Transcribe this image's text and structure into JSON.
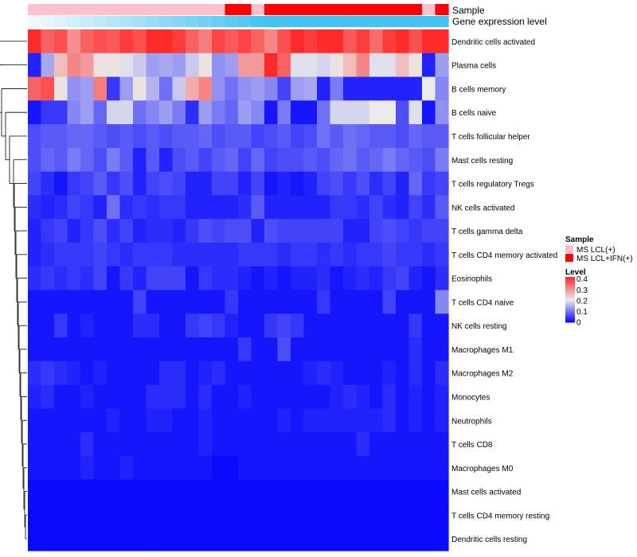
{
  "colors": {
    "low": "#0000ff",
    "mid": "#ebebeb",
    "high": "#ff2b2b",
    "sample_ms_lcl": "#ffc0cb",
    "sample_ms_lcl_ifn": "#ff0000",
    "gene_bar_start": "#f0f8ff",
    "gene_bar_end": "#44c2f2",
    "dendro": "#000000"
  },
  "chart_data": {
    "type": "heatmap",
    "annotation_labels": {
      "sample": "Sample",
      "gene_expression": "Gene expression level"
    },
    "legend": {
      "sample_title": "Sample",
      "sample_items": [
        {
          "label": "MS LCL(+)",
          "color": "#ffc0cb"
        },
        {
          "label": "MS LCL+IFN(+)",
          "color": "#ff0000"
        }
      ],
      "level_title": "Level",
      "level_ticks": [
        "0.4",
        "0.3",
        "0.2",
        "0.1",
        "0"
      ],
      "level_min": 0,
      "level_max": 0.42,
      "placement": "right"
    },
    "sample_groups": [
      0,
      0,
      0,
      0,
      0,
      0,
      0,
      0,
      0,
      0,
      0,
      0,
      0,
      0,
      0,
      1,
      1,
      0,
      1,
      1,
      1,
      1,
      1,
      1,
      1,
      1,
      1,
      1,
      1,
      1,
      0,
      1
    ],
    "rows": [
      "Dendritic cells activated",
      "Plasma cells",
      "B cells memory",
      "B cells naive",
      "T cells follicular helper",
      "Mast cells resting",
      "T cells regulatory  Tregs",
      "NK cells activated",
      "T cells gamma delta",
      "T cells CD4 memory activated",
      "Eosinophils",
      "T cells CD4 naive",
      "NK cells resting",
      "Macrophages M1",
      "Macrophages M2",
      "Monocytes",
      "Neutrophils",
      "T cells CD8",
      "Macrophages M0",
      "Mast cells activated",
      "T cells CD4 memory resting",
      "Dendritic cells resting"
    ],
    "values": [
      [
        0.42,
        0.36,
        0.38,
        0.31,
        0.36,
        0.38,
        0.37,
        0.4,
        0.38,
        0.42,
        0.42,
        0.4,
        0.36,
        0.33,
        0.39,
        0.37,
        0.39,
        0.36,
        0.32,
        0.38,
        0.42,
        0.4,
        0.42,
        0.42,
        0.37,
        0.4,
        0.35,
        0.4,
        0.42,
        0.38,
        0.42,
        0.42
      ],
      [
        0.03,
        0.15,
        0.26,
        0.32,
        0.3,
        0.22,
        0.22,
        0.2,
        0.18,
        0.14,
        0.15,
        0.14,
        0.18,
        0.22,
        0.13,
        0.14,
        0.3,
        0.3,
        0.42,
        0.36,
        0.2,
        0.2,
        0.19,
        0.22,
        0.26,
        0.32,
        0.2,
        0.2,
        0.26,
        0.22,
        0.03,
        0.14
      ],
      [
        0.36,
        0.38,
        0.22,
        0.13,
        0.14,
        0.33,
        0.05,
        0.14,
        0.22,
        0.16,
        0.1,
        0.18,
        0.28,
        0.32,
        0.13,
        0.1,
        0.13,
        0.14,
        0.12,
        0.06,
        0.14,
        0.15,
        0.03,
        0.11,
        0.03,
        0.03,
        0.03,
        0.03,
        0.03,
        0.03,
        0.21,
        0.12
      ],
      [
        0.02,
        0.05,
        0.05,
        0.12,
        0.14,
        0.09,
        0.19,
        0.19,
        0.1,
        0.12,
        0.14,
        0.11,
        0.04,
        0.14,
        0.11,
        0.09,
        0.14,
        0.12,
        0.02,
        0.11,
        0.02,
        0.02,
        0.1,
        0.19,
        0.19,
        0.19,
        0.21,
        0.21,
        0.07,
        0.2,
        0.02,
        0.13
      ],
      [
        0.07,
        0.08,
        0.08,
        0.09,
        0.09,
        0.08,
        0.07,
        0.08,
        0.07,
        0.08,
        0.07,
        0.08,
        0.08,
        0.09,
        0.07,
        0.08,
        0.08,
        0.06,
        0.07,
        0.08,
        0.06,
        0.07,
        0.1,
        0.08,
        0.1,
        0.09,
        0.08,
        0.08,
        0.07,
        0.09,
        0.08,
        0.08
      ],
      [
        0.07,
        0.09,
        0.08,
        0.11,
        0.09,
        0.07,
        0.11,
        0.08,
        0.03,
        0.08,
        0.03,
        0.07,
        0.08,
        0.06,
        0.08,
        0.09,
        0.06,
        0.09,
        0.06,
        0.07,
        0.07,
        0.08,
        0.07,
        0.09,
        0.1,
        0.08,
        0.09,
        0.11,
        0.09,
        0.08,
        0.07,
        0.11
      ],
      [
        0.06,
        0.04,
        0.02,
        0.05,
        0.06,
        0.08,
        0.05,
        0.07,
        0.03,
        0.06,
        0.07,
        0.06,
        0.03,
        0.03,
        0.06,
        0.06,
        0.03,
        0.06,
        0.02,
        0.03,
        0.02,
        0.03,
        0.06,
        0.07,
        0.05,
        0.07,
        0.04,
        0.06,
        0.03,
        0.09,
        0.05,
        0.06
      ],
      [
        0.04,
        0.03,
        0.04,
        0.06,
        0.05,
        0.03,
        0.1,
        0.04,
        0.05,
        0.04,
        0.05,
        0.05,
        0.03,
        0.03,
        0.03,
        0.03,
        0.04,
        0.08,
        0.03,
        0.03,
        0.03,
        0.03,
        0.03,
        0.05,
        0.05,
        0.04,
        0.06,
        0.04,
        0.03,
        0.06,
        0.04,
        0.08
      ],
      [
        0.03,
        0.05,
        0.06,
        0.03,
        0.05,
        0.07,
        0.04,
        0.06,
        0.03,
        0.04,
        0.04,
        0.03,
        0.05,
        0.07,
        0.06,
        0.07,
        0.07,
        0.03,
        0.07,
        0.06,
        0.06,
        0.06,
        0.06,
        0.06,
        0.03,
        0.03,
        0.06,
        0.07,
        0.06,
        0.05,
        0.06,
        0.06
      ],
      [
        0.03,
        0.04,
        0.05,
        0.05,
        0.05,
        0.06,
        0.05,
        0.04,
        0.05,
        0.05,
        0.05,
        0.04,
        0.04,
        0.04,
        0.04,
        0.04,
        0.05,
        0.05,
        0.05,
        0.04,
        0.05,
        0.05,
        0.04,
        0.05,
        0.04,
        0.05,
        0.05,
        0.06,
        0.05,
        0.05,
        0.04,
        0.05
      ],
      [
        0.04,
        0.05,
        0.04,
        0.05,
        0.04,
        0.06,
        0.02,
        0.05,
        0.03,
        0.06,
        0.06,
        0.06,
        0.02,
        0.05,
        0.04,
        0.04,
        0.03,
        0.02,
        0.03,
        0.02,
        0.03,
        0.03,
        0.04,
        0.02,
        0.03,
        0.04,
        0.03,
        0.05,
        0.06,
        0.03,
        0.02,
        0.04
      ],
      [
        0.02,
        0.02,
        0.02,
        0.02,
        0.02,
        0.02,
        0.02,
        0.02,
        0.06,
        0.02,
        0.02,
        0.02,
        0.02,
        0.02,
        0.02,
        0.05,
        0.02,
        0.02,
        0.02,
        0.02,
        0.02,
        0.02,
        0.05,
        0.02,
        0.02,
        0.02,
        0.02,
        0.06,
        0.02,
        0.02,
        0.02,
        0.12
      ],
      [
        0.02,
        0.02,
        0.05,
        0.02,
        0.03,
        0.02,
        0.02,
        0.02,
        0.04,
        0.04,
        0.02,
        0.02,
        0.05,
        0.06,
        0.05,
        0.03,
        0.02,
        0.02,
        0.05,
        0.06,
        0.05,
        0.02,
        0.02,
        0.02,
        0.02,
        0.02,
        0.02,
        0.02,
        0.02,
        0.05,
        0.02,
        0.02
      ],
      [
        0.02,
        0.02,
        0.02,
        0.02,
        0.02,
        0.02,
        0.02,
        0.02,
        0.02,
        0.02,
        0.02,
        0.02,
        0.02,
        0.02,
        0.02,
        0.02,
        0.05,
        0.02,
        0.02,
        0.07,
        0.02,
        0.02,
        0.02,
        0.02,
        0.02,
        0.02,
        0.02,
        0.02,
        0.02,
        0.04,
        0.02,
        0.02
      ],
      [
        0.04,
        0.05,
        0.04,
        0.03,
        0.02,
        0.03,
        0.02,
        0.02,
        0.02,
        0.02,
        0.04,
        0.04,
        0.02,
        0.03,
        0.04,
        0.02,
        0.02,
        0.02,
        0.02,
        0.02,
        0.02,
        0.03,
        0.04,
        0.03,
        0.02,
        0.02,
        0.02,
        0.03,
        0.02,
        0.04,
        0.02,
        0.04
      ],
      [
        0.03,
        0.04,
        0.02,
        0.02,
        0.03,
        0.02,
        0.02,
        0.02,
        0.02,
        0.04,
        0.04,
        0.04,
        0.02,
        0.04,
        0.02,
        0.02,
        0.03,
        0.02,
        0.02,
        0.02,
        0.02,
        0.02,
        0.02,
        0.03,
        0.04,
        0.03,
        0.02,
        0.04,
        0.02,
        0.03,
        0.02,
        0.03
      ],
      [
        0.02,
        0.02,
        0.02,
        0.02,
        0.02,
        0.02,
        0.03,
        0.02,
        0.02,
        0.03,
        0.03,
        0.02,
        0.02,
        0.03,
        0.02,
        0.02,
        0.02,
        0.02,
        0.02,
        0.03,
        0.02,
        0.03,
        0.03,
        0.03,
        0.03,
        0.03,
        0.03,
        0.04,
        0.02,
        0.03,
        0.02,
        0.03
      ],
      [
        0.02,
        0.02,
        0.02,
        0.02,
        0.04,
        0.02,
        0.02,
        0.02,
        0.02,
        0.02,
        0.02,
        0.02,
        0.02,
        0.03,
        0.02,
        0.02,
        0.02,
        0.02,
        0.02,
        0.02,
        0.02,
        0.02,
        0.02,
        0.02,
        0.02,
        0.04,
        0.02,
        0.02,
        0.02,
        0.02,
        0.02,
        0.02
      ],
      [
        0.02,
        0.02,
        0.02,
        0.02,
        0.03,
        0.02,
        0.02,
        0.03,
        0.02,
        0.02,
        0.02,
        0.02,
        0.02,
        0.02,
        0.01,
        0.01,
        0.02,
        0.02,
        0.02,
        0.02,
        0.02,
        0.02,
        0.02,
        0.02,
        0.02,
        0.02,
        0.02,
        0.02,
        0.02,
        0.02,
        0.02,
        0.02
      ],
      [
        0.01,
        0.01,
        0.01,
        0.01,
        0.01,
        0.01,
        0.01,
        0.01,
        0.01,
        0.01,
        0.01,
        0.01,
        0.01,
        0.01,
        0.01,
        0.01,
        0.01,
        0.01,
        0.01,
        0.01,
        0.01,
        0.01,
        0.01,
        0.01,
        0.01,
        0.01,
        0.01,
        0.01,
        0.01,
        0.01,
        0.01,
        0.01
      ],
      [
        0.01,
        0.01,
        0.01,
        0.01,
        0.01,
        0.01,
        0.01,
        0.01,
        0.01,
        0.01,
        0.01,
        0.01,
        0.01,
        0.01,
        0.01,
        0.01,
        0.01,
        0.01,
        0.01,
        0.01,
        0.01,
        0.01,
        0.01,
        0.01,
        0.01,
        0.01,
        0.01,
        0.01,
        0.01,
        0.01,
        0.01,
        0.01
      ],
      [
        0.01,
        0.01,
        0.01,
        0.01,
        0.01,
        0.01,
        0.01,
        0.01,
        0.01,
        0.01,
        0.01,
        0.01,
        0.01,
        0.01,
        0.01,
        0.01,
        0.01,
        0.01,
        0.01,
        0.01,
        0.01,
        0.01,
        0.01,
        0.01,
        0.01,
        0.01,
        0.01,
        0.01,
        0.01,
        0.01,
        0.01,
        0.01
      ]
    ]
  }
}
